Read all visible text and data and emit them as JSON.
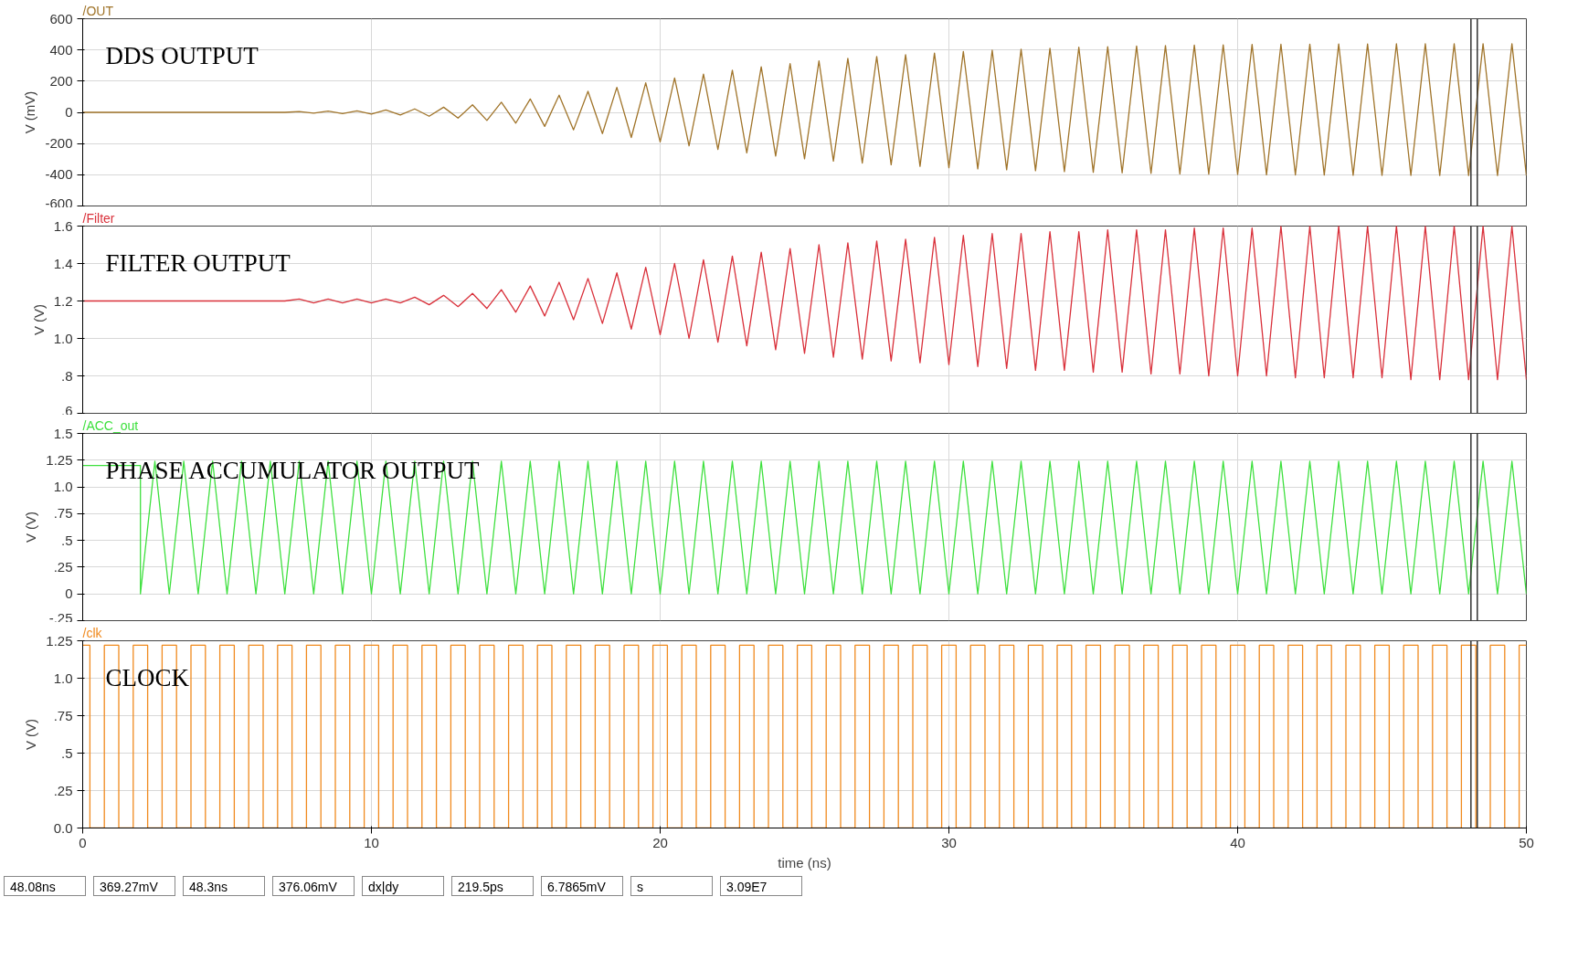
{
  "chart_data": [
    {
      "type": "line",
      "ylabel": "V (mV)",
      "xlim": [
        0,
        50
      ],
      "xticks": [
        0,
        10,
        20,
        30,
        40,
        50
      ],
      "ylim": [
        -600,
        600
      ],
      "yticks": [
        -600,
        -400,
        -200,
        0,
        200,
        400,
        600
      ],
      "grid": true,
      "tick_labels": "y",
      "annotations": [
        "DDS OUTPUT"
      ],
      "ref_lines": [
        {
          "axis": "x",
          "value": 48.08,
          "color": "#333333"
        },
        {
          "axis": "x",
          "value": 48.3,
          "color": "#333333"
        }
      ],
      "series": [
        {
          "name": "/OUT",
          "color": "#a0742a",
          "x": [
            0,
            7,
            7.5,
            8,
            8.5,
            9,
            9.5,
            10,
            10.5,
            11,
            11.5,
            12,
            12.5,
            13,
            13.5,
            14,
            14.5,
            15,
            15.5,
            16,
            16.5,
            17,
            17.5,
            18,
            18.5,
            19,
            19.5,
            20,
            20.5,
            21,
            21.5,
            22,
            22.5,
            23,
            23.5,
            24,
            24.5,
            25,
            25.5,
            26,
            26.5,
            27,
            27.5,
            28,
            28.5,
            29,
            29.5,
            30,
            30.5,
            31,
            31.5,
            32,
            32.5,
            33,
            33.5,
            34,
            34.5,
            35,
            35.5,
            36,
            36.5,
            37,
            37.5,
            38,
            38.5,
            39,
            39.5,
            40,
            40.5,
            41,
            41.5,
            42,
            42.5,
            43,
            43.5,
            44,
            44.5,
            45,
            45.5,
            46,
            46.5,
            47,
            47.5,
            48,
            48.5,
            49,
            49.5,
            50
          ],
          "values": [
            0,
            0,
            5,
            -5,
            8,
            -8,
            10,
            -11,
            15,
            -17,
            22,
            -25,
            33,
            -37,
            48,
            -52,
            65,
            -69,
            86,
            -90,
            110,
            -112,
            135,
            -136,
            160,
            -161,
            190,
            -190,
            220,
            -215,
            245,
            -238,
            270,
            -260,
            292,
            -280,
            312,
            -298,
            330,
            -312,
            346,
            -325,
            358,
            -336,
            370,
            -346,
            380,
            -355,
            390,
            -362,
            398,
            -368,
            405,
            -374,
            411,
            -380,
            417,
            -384,
            421,
            -388,
            425,
            -391,
            428,
            -394,
            431,
            -396,
            433,
            -398,
            435,
            -400,
            436,
            -401,
            437,
            -402,
            438,
            -403,
            438,
            -404,
            439,
            -404,
            440,
            -405,
            440,
            -405,
            440,
            -405,
            440,
            -405
          ]
        }
      ]
    },
    {
      "type": "line",
      "ylabel": "V (V)",
      "xlim": [
        0,
        50
      ],
      "xticks": [
        0,
        10,
        20,
        30,
        40,
        50
      ],
      "ylim": [
        0.6,
        1.6
      ],
      "yticks": [
        {
          "value": 0.6,
          "label": ".6"
        },
        {
          "value": 0.8,
          "label": ".8"
        },
        {
          "value": 1.0,
          "label": "1.0"
        },
        1.2,
        1.4,
        1.6
      ],
      "grid": true,
      "tick_labels": "y",
      "annotations": [
        "FILTER OUTPUT"
      ],
      "ref_lines": [
        {
          "axis": "x",
          "value": 48.08,
          "color": "#333333"
        },
        {
          "axis": "x",
          "value": 48.3,
          "color": "#333333"
        }
      ],
      "series": [
        {
          "name": "/Filter",
          "color": "#d9303a",
          "x": [
            0,
            7,
            7.5,
            8,
            8.5,
            9,
            9.5,
            10,
            10.5,
            11,
            11.5,
            12,
            12.5,
            13,
            13.5,
            14,
            14.5,
            15,
            15.5,
            16,
            16.5,
            17,
            17.5,
            18,
            18.5,
            19,
            19.5,
            20,
            20.5,
            21,
            21.5,
            22,
            22.5,
            23,
            23.5,
            24,
            24.5,
            25,
            25.5,
            26,
            26.5,
            27,
            27.5,
            28,
            28.5,
            29,
            29.5,
            30,
            30.5,
            31,
            31.5,
            32,
            32.5,
            33,
            33.5,
            34,
            34.5,
            35,
            35.5,
            36,
            36.5,
            37,
            37.5,
            38,
            38.5,
            39,
            39.5,
            40,
            40.5,
            41,
            41.5,
            42,
            42.5,
            43,
            43.5,
            44,
            44.5,
            45,
            45.5,
            46,
            46.5,
            47,
            47.5,
            48,
            48.5,
            49,
            49.5,
            50
          ],
          "values": [
            1.2,
            1.2,
            1.21,
            1.19,
            1.21,
            1.19,
            1.21,
            1.19,
            1.21,
            1.19,
            1.22,
            1.18,
            1.23,
            1.17,
            1.24,
            1.16,
            1.26,
            1.14,
            1.28,
            1.12,
            1.3,
            1.1,
            1.32,
            1.08,
            1.35,
            1.05,
            1.38,
            1.02,
            1.4,
            1.0,
            1.42,
            0.98,
            1.44,
            0.96,
            1.46,
            0.94,
            1.48,
            0.92,
            1.5,
            0.9,
            1.51,
            0.89,
            1.52,
            0.88,
            1.53,
            0.87,
            1.54,
            0.86,
            1.55,
            0.85,
            1.56,
            0.84,
            1.56,
            0.83,
            1.57,
            0.83,
            1.57,
            0.82,
            1.58,
            0.82,
            1.58,
            0.81,
            1.58,
            0.81,
            1.59,
            0.8,
            1.59,
            0.8,
            1.59,
            0.8,
            1.6,
            0.79,
            1.6,
            0.79,
            1.6,
            0.79,
            1.6,
            0.79,
            1.6,
            0.78,
            1.6,
            0.78,
            1.6,
            0.78,
            1.6,
            0.78,
            1.6,
            0.78
          ]
        }
      ]
    },
    {
      "type": "line",
      "ylabel": "V (V)",
      "xlim": [
        0,
        50
      ],
      "xticks": [
        0,
        10,
        20,
        30,
        40,
        50
      ],
      "ylim": [
        -0.25,
        1.5
      ],
      "yticks": [
        {
          "value": -0.25,
          "label": "-.25"
        },
        0,
        {
          "value": 0.25,
          "label": ".25"
        },
        {
          "value": 0.5,
          "label": ".5"
        },
        {
          "value": 0.75,
          "label": ".75"
        },
        {
          "value": 1.0,
          "label": "1.0"
        },
        1.25,
        1.5
      ],
      "grid": true,
      "tick_labels": "y",
      "annotations": [
        "PHASE ACCUMULATOR OUTPUT"
      ],
      "ref_lines": [
        {
          "axis": "x",
          "value": 48.08,
          "color": "#333333"
        },
        {
          "axis": "x",
          "value": 48.3,
          "color": "#333333"
        }
      ],
      "series": [
        {
          "name": "/ACC_out",
          "color": "#3ee03e",
          "x": [
            0,
            2,
            2,
            2.5,
            3,
            3.5,
            4,
            4.5,
            5,
            5.5,
            6,
            6.5,
            7,
            7.5,
            8,
            8.5,
            9,
            9.5,
            10,
            10.5,
            11,
            11.5,
            12,
            12.5,
            13,
            13.5,
            14,
            14.5,
            15,
            15.5,
            16,
            16.5,
            17,
            17.5,
            18,
            18.5,
            19,
            19.5,
            20,
            20.5,
            21,
            21.5,
            22,
            22.5,
            23,
            23.5,
            24,
            24.5,
            25,
            25.5,
            26,
            26.5,
            27,
            27.5,
            28,
            28.5,
            29,
            29.5,
            30,
            30.5,
            31,
            31.5,
            32,
            32.5,
            33,
            33.5,
            34,
            34.5,
            35,
            35.5,
            36,
            36.5,
            37,
            37.5,
            38,
            38.5,
            39,
            39.5,
            40,
            40.5,
            41,
            41.5,
            42,
            42.5,
            43,
            43.5,
            44,
            44.5,
            45,
            45.5,
            46,
            46.5,
            47,
            47.5,
            48,
            48.5,
            49,
            49.5,
            50
          ],
          "values": [
            1.2,
            1.2,
            0,
            1.24,
            0,
            1.24,
            0,
            1.24,
            0,
            1.24,
            0,
            1.24,
            0,
            1.24,
            0,
            1.24,
            0,
            1.24,
            0,
            1.24,
            0,
            1.24,
            0,
            1.24,
            0,
            1.24,
            0,
            1.24,
            0,
            1.24,
            0,
            1.24,
            0,
            1.24,
            0,
            1.24,
            0,
            1.24,
            0,
            1.24,
            0,
            1.24,
            0,
            1.24,
            0,
            1.24,
            0,
            1.24,
            0,
            1.24,
            0,
            1.24,
            0,
            1.24,
            0,
            1.24,
            0,
            1.24,
            0,
            1.24,
            0,
            1.24,
            0,
            1.24,
            0,
            1.24,
            0,
            1.24,
            0,
            1.24,
            0,
            1.24,
            0,
            1.24,
            0,
            1.24,
            0,
            1.24,
            0,
            1.24,
            0,
            1.24,
            0,
            1.24,
            0,
            1.24,
            0,
            1.24,
            0,
            1.24,
            0,
            1.24,
            0,
            1.24,
            0,
            1.24,
            0,
            1.24,
            0
          ]
        }
      ]
    },
    {
      "type": "step",
      "xlabel": "time (ns)",
      "ylabel": "V (V)",
      "xlim": [
        0,
        50
      ],
      "xticks": [
        0,
        10,
        20,
        30,
        40,
        50
      ],
      "ylim": [
        0,
        1.25
      ],
      "yticks": [
        {
          "value": 0,
          "label": "0.0"
        },
        {
          "value": 0.25,
          "label": ".25"
        },
        {
          "value": 0.5,
          "label": ".5"
        },
        {
          "value": 0.75,
          "label": ".75"
        },
        {
          "value": 1.0,
          "label": "1.0"
        },
        1.25
      ],
      "grid": true,
      "annotations": [
        "CLOCK",
        "48.08ns",
        "369.27mV",
        "48.3ns",
        "376.06mV",
        "dx|dy",
        "219.5ps",
        "6.7865mV",
        "s",
        "3.09E7"
      ],
      "ref_lines": [
        {
          "axis": "x",
          "value": 48.08,
          "color": "#333333"
        },
        {
          "axis": "x",
          "value": 48.3,
          "color": "#333333"
        }
      ],
      "series": [
        {
          "name": "/clk",
          "color": "#f08a1e",
          "x": [
            0,
            0.5,
            1,
            1.5,
            2,
            2.5,
            3,
            3.5,
            4,
            4.5,
            5,
            5.5,
            6,
            6.5,
            7,
            7.5,
            8,
            8.5,
            9,
            9.5,
            10,
            10.5,
            11,
            11.5,
            12,
            12.5,
            13,
            13.5,
            14,
            14.5,
            15,
            15.5,
            16,
            16.5,
            17,
            17.5,
            18,
            18.5,
            19,
            19.5,
            20,
            20.5,
            21,
            21.5,
            22,
            22.5,
            23,
            23.5,
            24,
            24.5,
            25,
            25.5,
            26,
            26.5,
            27,
            27.5,
            28,
            28.5,
            29,
            29.5,
            30,
            30.5,
            31,
            31.5,
            32,
            32.5,
            33,
            33.5,
            34,
            34.5,
            35,
            35.5,
            36,
            36.5,
            37,
            37.5,
            38,
            38.5,
            39,
            39.5,
            40,
            40.5,
            41,
            41.5,
            42,
            42.5,
            43,
            43.5,
            44,
            44.5,
            45,
            45.5,
            46,
            46.5,
            47,
            47.5,
            48,
            48.5,
            49,
            49.5,
            50
          ],
          "values": [
            1.22,
            0,
            1.22,
            0,
            1.22,
            0,
            1.22,
            0,
            1.22,
            0,
            1.22,
            0,
            1.22,
            0,
            1.22,
            0,
            1.22,
            0,
            1.22,
            0,
            1.22,
            0,
            1.22,
            0,
            1.22,
            0,
            1.22,
            0,
            1.22,
            0,
            1.22,
            0,
            1.22,
            0,
            1.22,
            0,
            1.22,
            0,
            1.22,
            0,
            1.22,
            0,
            1.22,
            0,
            1.22,
            0,
            1.22,
            0,
            1.22,
            0,
            1.22,
            0,
            1.22,
            0,
            1.22,
            0,
            1.22,
            0,
            1.22,
            0,
            1.22,
            0,
            1.22,
            0,
            1.22,
            0,
            1.22,
            0,
            1.22,
            0,
            1.22,
            0,
            1.22,
            0,
            1.22,
            0,
            1.22,
            0,
            1.22,
            0,
            1.22,
            0,
            1.22,
            0,
            1.22,
            0,
            1.22,
            0,
            1.22,
            0,
            1.22,
            0,
            1.22,
            0,
            1.22,
            0,
            1.22,
            0,
            1.22,
            0,
            1.22
          ]
        }
      ]
    }
  ]
}
